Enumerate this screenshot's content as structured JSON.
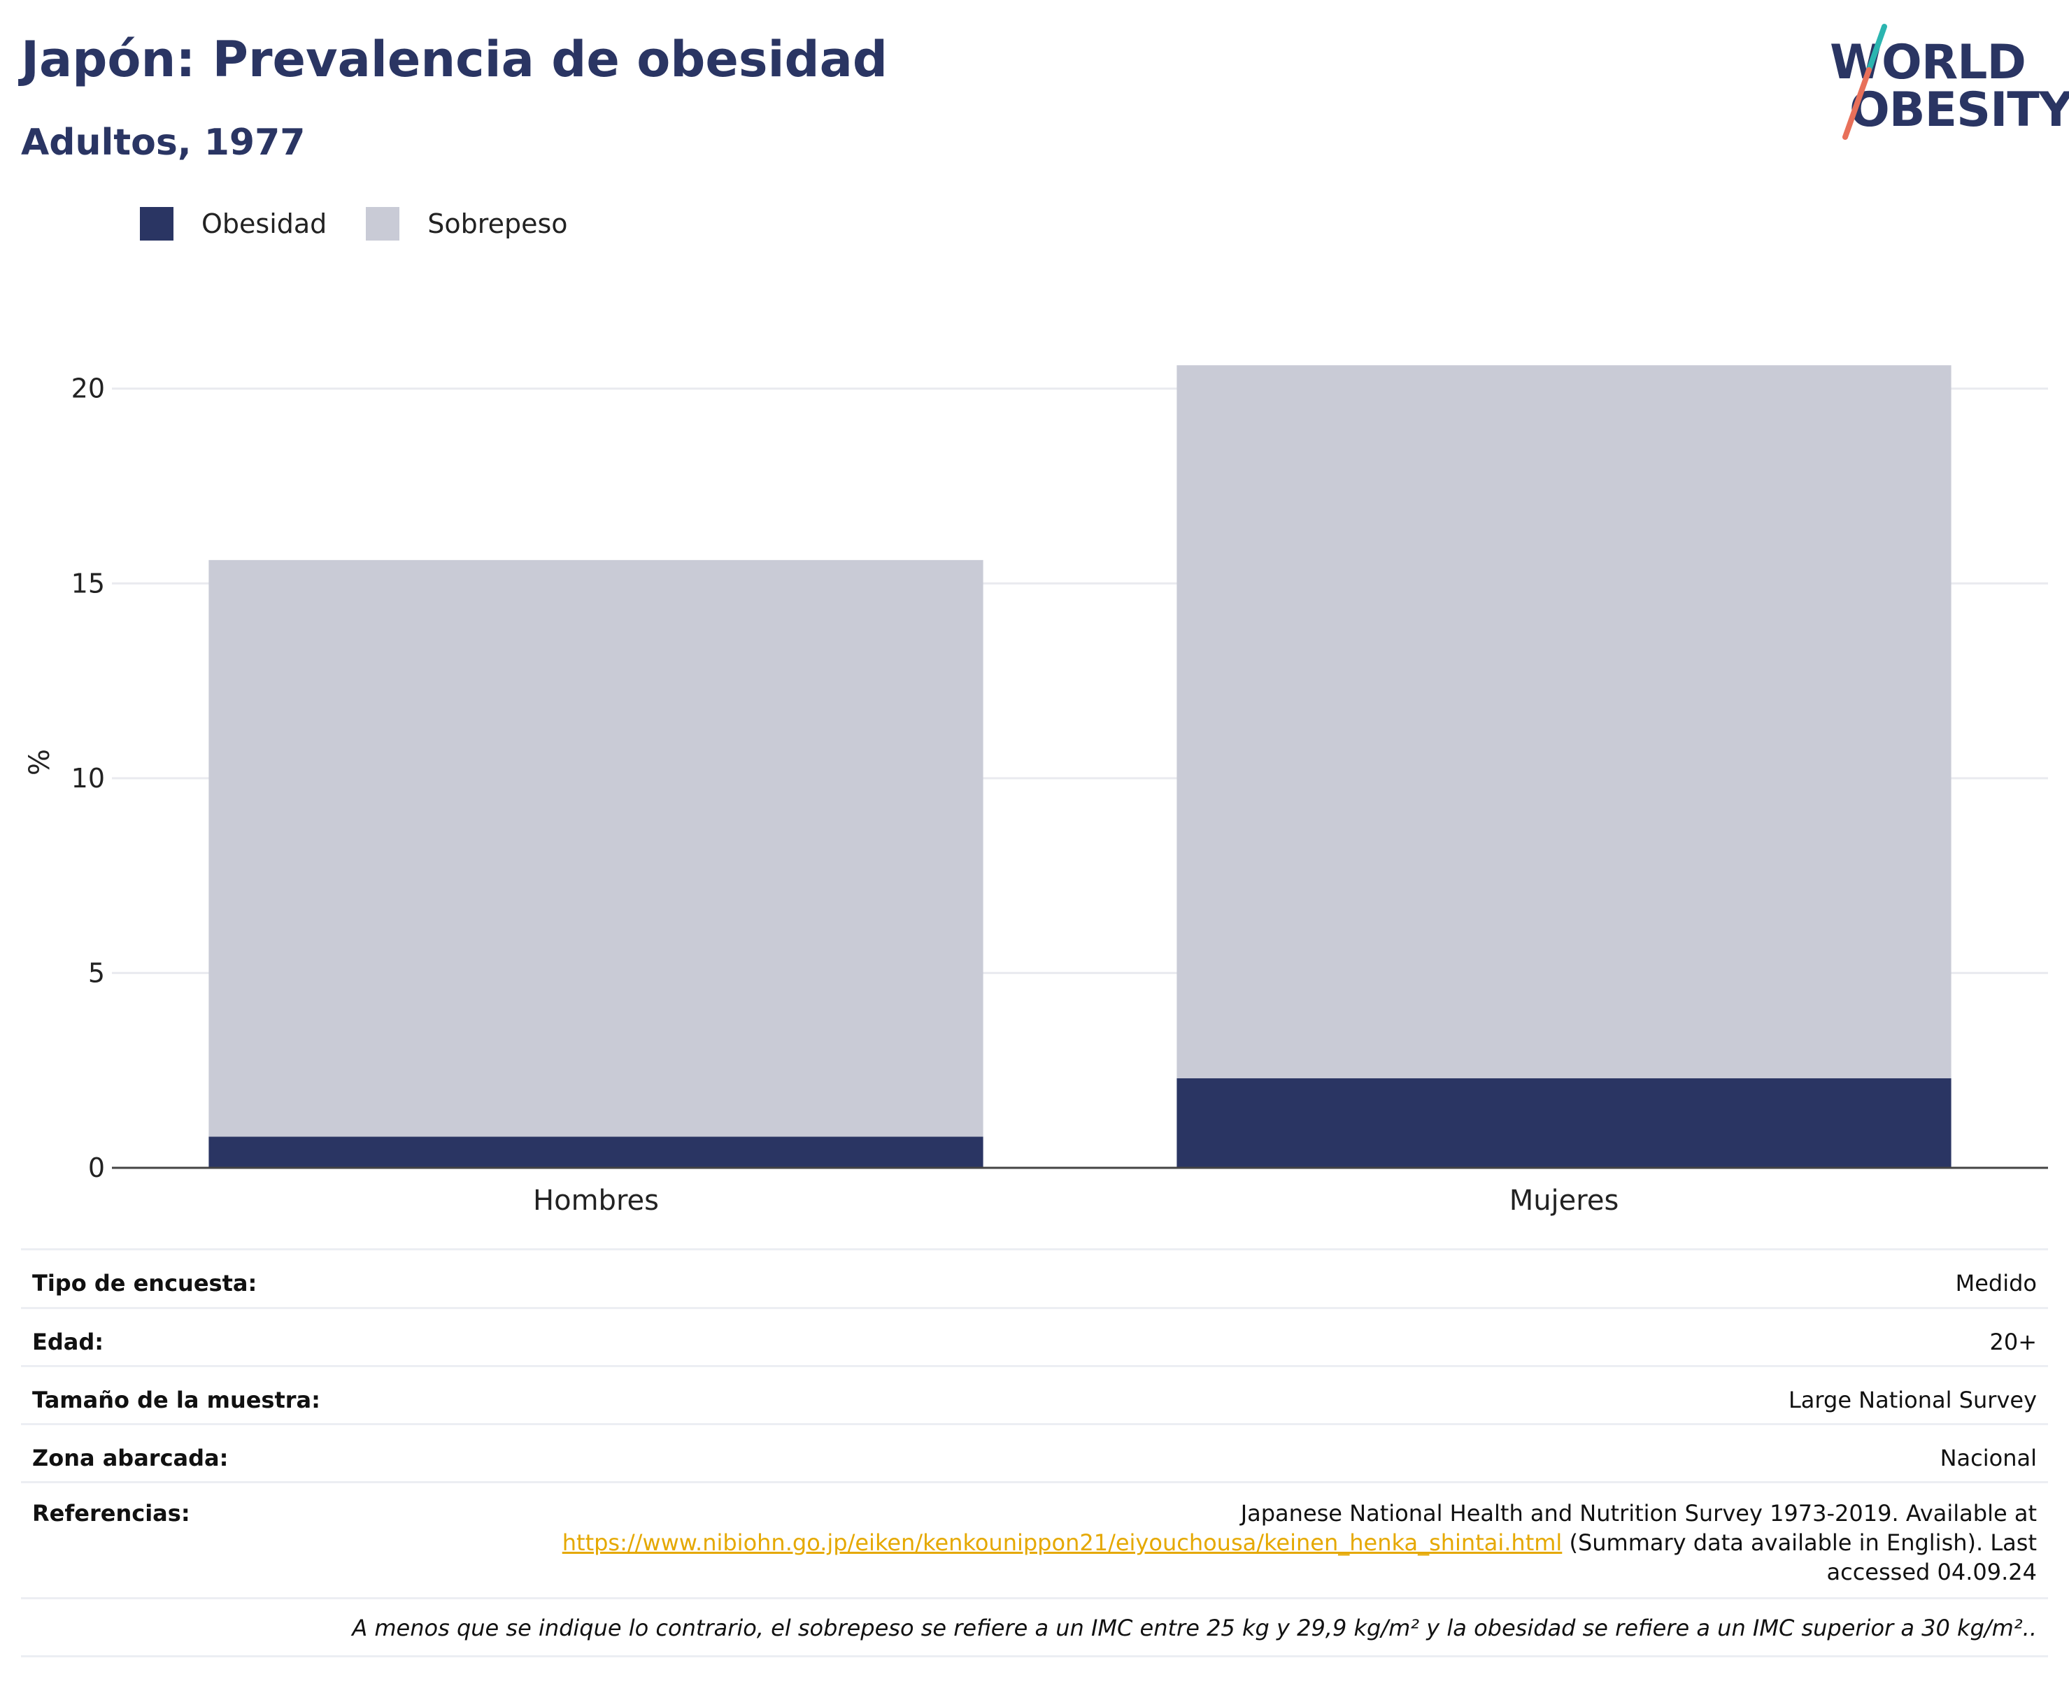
{
  "header": {
    "title": "Japón: Prevalencia de obesidad",
    "subtitle": "Adultos, 1977"
  },
  "logo": {
    "line1": "WORLD",
    "line2": "OBESITY",
    "colors": {
      "text": "#2a3563",
      "slash_top": "#2bb5b0",
      "slash_bottom": "#e8705a"
    }
  },
  "legend": [
    {
      "label": "Obesidad",
      "color": "#2a3563"
    },
    {
      "label": "Sobrepeso",
      "color": "#c9cbd6"
    }
  ],
  "chart_data": {
    "type": "bar",
    "stacked": true,
    "categories": [
      "Hombres",
      "Mujeres"
    ],
    "series": [
      {
        "name": "Obesidad",
        "color": "#2a3563",
        "values": [
          0.8,
          2.3
        ]
      },
      {
        "name": "Sobrepeso",
        "color": "#c9cbd6",
        "values": [
          14.8,
          18.3
        ]
      }
    ],
    "ylabel": "%",
    "xlabel": "",
    "ylim": [
      0,
      21
    ],
    "yticks": [
      0,
      5,
      10,
      15,
      20
    ],
    "grid": true,
    "legend_position": "top-left"
  },
  "meta": {
    "rows": [
      {
        "label": "Tipo de encuesta:",
        "value": "Medido"
      },
      {
        "label": "Edad:",
        "value": "20+"
      },
      {
        "label": "Tamaño de la muestra:",
        "value": "Large National Survey"
      },
      {
        "label": "Zona abarcada:",
        "value": "Nacional"
      }
    ],
    "references": {
      "label": "Referencias:",
      "line1": "Japanese National Health and Nutrition Survey 1973-2019. Available at",
      "link": "https://www.nibiohn.go.jp/eiken/kenkounippon21/eiyouchousa/keinen_henka_shintai.html",
      "after_link": " (Summary data available in English). Last",
      "line3": "accessed 04.09.24"
    },
    "note": "A menos que se indique lo contrario, el sobrepeso se refiere a un IMC entre 25 kg y 29,9 kg/m² y la obesidad se refiere a un IMC superior a 30 kg/m².."
  }
}
